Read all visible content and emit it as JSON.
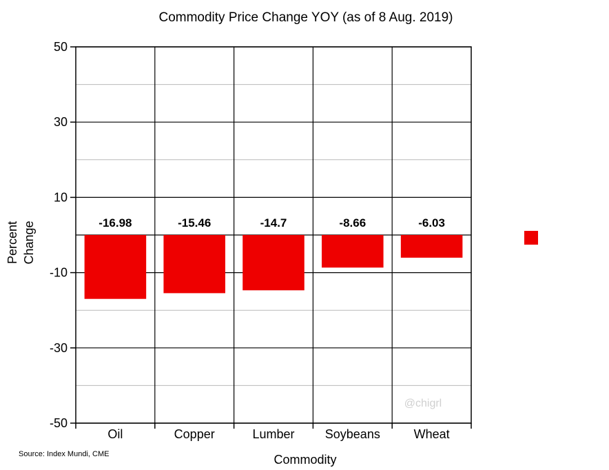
{
  "chart_data": {
    "type": "bar",
    "title": "Commodity Price Change YOY (as of 8 Aug. 2019)",
    "xlabel": "Commodity",
    "ylabel": [
      "Percent",
      "Change"
    ],
    "categories": [
      "Oil",
      "Copper",
      "Lumber",
      "Soybeans",
      "Wheat"
    ],
    "values": [
      -16.98,
      -15.46,
      -14.7,
      -8.66,
      -6.03
    ],
    "data_labels": [
      "-16.98",
      "-15.46",
      "-14.7",
      "-8.66",
      "-6.03"
    ],
    "ylim": [
      -50,
      50
    ],
    "yticks": [
      50,
      30,
      10,
      -10,
      -30,
      -50
    ],
    "grid": true,
    "legend_position": "right",
    "bar_color": "#ee0000",
    "legend_swatch_color": "#ee0000",
    "source": "Source: Index Mundi, CME",
    "watermark": "@chigrl"
  }
}
